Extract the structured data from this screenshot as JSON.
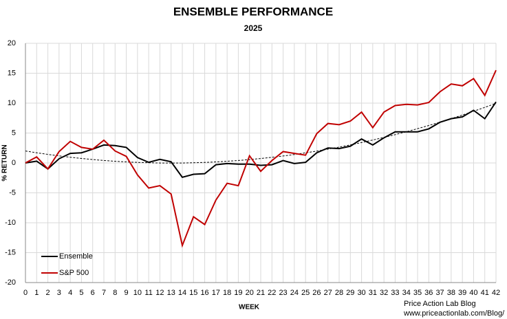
{
  "chart_data": {
    "type": "line",
    "title": "ENSEMBLE PERFORMANCE",
    "subtitle": "2025",
    "x_label": "WEEK",
    "y_label": "% RETURN",
    "footer": [
      "Price Action Lab Blog",
      "www.priceactionlab.com/Blog/"
    ],
    "x": [
      0,
      1,
      2,
      3,
      4,
      5,
      6,
      7,
      8,
      9,
      10,
      11,
      12,
      13,
      14,
      15,
      16,
      17,
      18,
      19,
      20,
      21,
      22,
      23,
      24,
      25,
      26,
      27,
      28,
      29,
      30,
      31,
      32,
      33,
      34,
      35,
      36,
      37,
      38,
      39,
      40,
      41,
      42
    ],
    "xlim": [
      0,
      42
    ],
    "xticks": [
      0,
      1,
      2,
      3,
      4,
      5,
      6,
      7,
      8,
      9,
      10,
      11,
      12,
      13,
      14,
      15,
      16,
      17,
      18,
      19,
      20,
      21,
      22,
      23,
      24,
      25,
      26,
      27,
      28,
      29,
      30,
      31,
      32,
      33,
      34,
      35,
      36,
      37,
      38,
      39,
      40,
      41,
      42
    ],
    "ylim": [
      -20,
      20
    ],
    "yticks": [
      -20,
      -15,
      -10,
      -5,
      0,
      5,
      10,
      15,
      20
    ],
    "grid": true,
    "legend": "lower left",
    "series": [
      {
        "name": "Ensemble",
        "color": "#000000",
        "values": [
          0,
          0.3,
          -1.0,
          0.7,
          1.6,
          1.7,
          2.3,
          3.0,
          2.9,
          2.6,
          0.9,
          0.1,
          0.6,
          0.2,
          -2.4,
          -1.9,
          -1.8,
          -0.3,
          -0.1,
          -0.2,
          -0.2,
          -0.4,
          -0.3,
          0.4,
          -0.1,
          0.1,
          1.7,
          2.5,
          2.4,
          2.8,
          4.0,
          3.0,
          4.2,
          5.2,
          5.2,
          5.2,
          5.7,
          6.8,
          7.4,
          7.7,
          8.8,
          7.4,
          10.2
        ]
      },
      {
        "name": "S&P 500",
        "color": "#c00000",
        "values": [
          0,
          1.0,
          -1.0,
          1.9,
          3.6,
          2.6,
          2.3,
          3.8,
          2.0,
          1.1,
          -2.0,
          -4.2,
          -3.8,
          -5.2,
          -13.8,
          -9.0,
          -10.3,
          -6.2,
          -3.4,
          -3.8,
          1.2,
          -1.4,
          0.4,
          1.9,
          1.6,
          1.3,
          4.9,
          6.6,
          6.4,
          7.0,
          8.5,
          5.9,
          8.5,
          9.6,
          9.8,
          9.7,
          10.1,
          11.9,
          13.2,
          12.9,
          14.1,
          11.3,
          15.5
        ]
      }
    ],
    "trend": {
      "color": "#000000",
      "dashed": true,
      "values": [
        2.0,
        1.7,
        1.43,
        1.18,
        0.95,
        0.75,
        0.57,
        0.41,
        0.28,
        0.17,
        0.09,
        0.03,
        -0.01,
        -0.02,
        -0.01,
        0.03,
        0.09,
        0.17,
        0.28,
        0.41,
        0.56,
        0.74,
        0.94,
        1.16,
        1.41,
        1.69,
        1.98,
        2.31,
        2.65,
        3.02,
        3.41,
        3.83,
        4.27,
        4.73,
        5.22,
        5.73,
        6.26,
        6.82,
        7.4,
        8.01,
        8.64,
        9.29,
        9.97
      ]
    }
  }
}
